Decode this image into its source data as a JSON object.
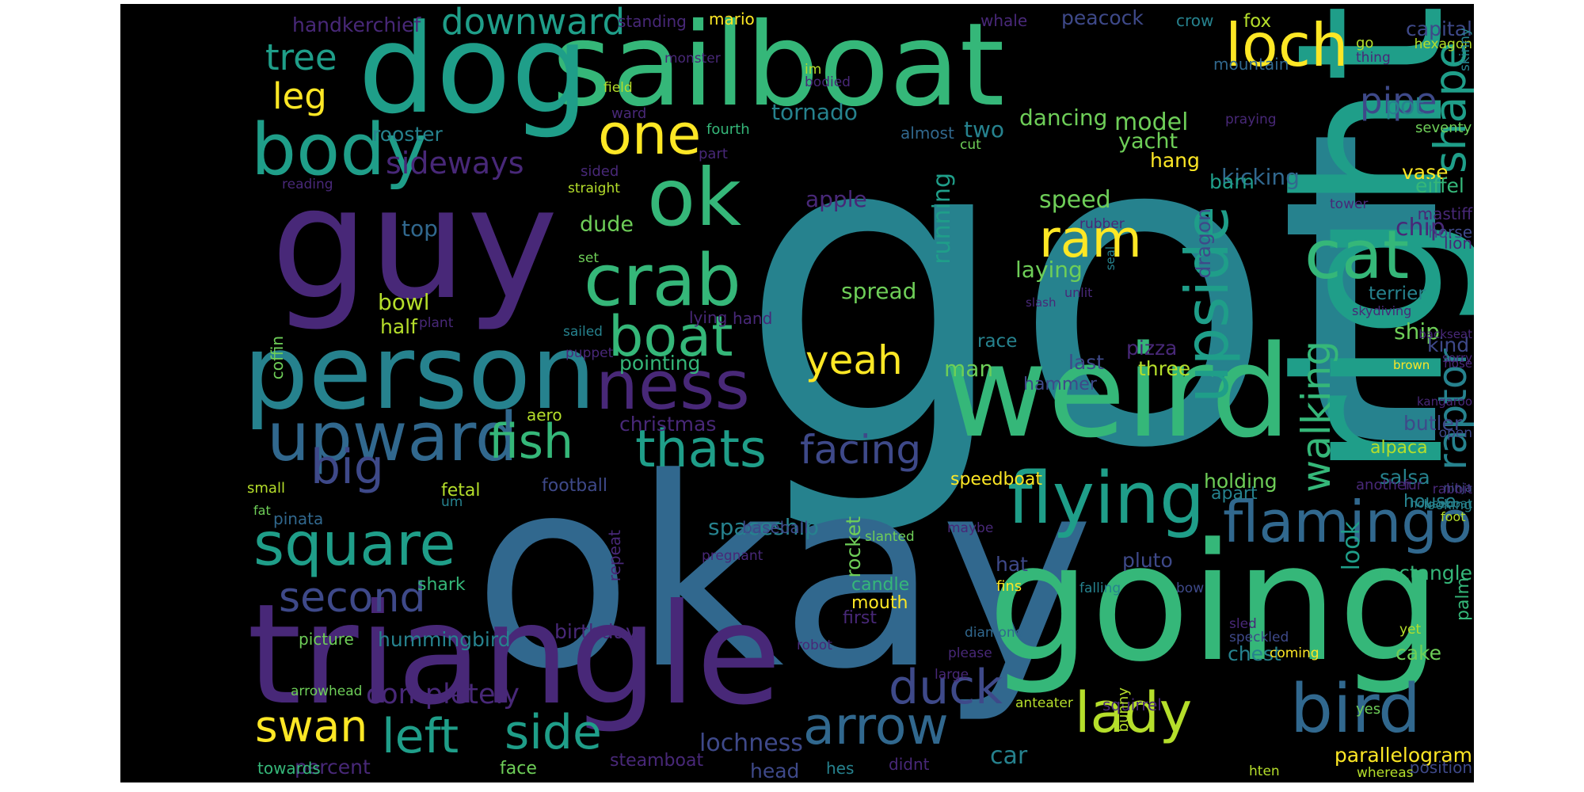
{
  "palette": {
    "background": "#000000",
    "yellow": "#fde725",
    "lime": "#b5de2b",
    "green": "#6ece58",
    "mint": "#35b779",
    "aqua": "#1f9e89",
    "teal": "#26828e",
    "steel": "#31688e",
    "indigo": "#3e4989",
    "violet": "#482878",
    "deep": "#440154"
  },
  "words": [
    {
      "text": "got",
      "color": "teal"
    },
    {
      "text": "okay",
      "color": "steel"
    },
    {
      "text": "sailboat",
      "color": "mint"
    },
    {
      "text": "dog",
      "color": "aqua"
    },
    {
      "text": "guy",
      "color": "violet"
    },
    {
      "text": "right",
      "color": "aqua"
    },
    {
      "text": "going",
      "color": "mint"
    },
    {
      "text": "triangle",
      "color": "violet"
    },
    {
      "text": "weird",
      "color": "mint"
    },
    {
      "text": "person",
      "color": "teal"
    },
    {
      "text": "loch",
      "color": "yellow"
    },
    {
      "text": "ok",
      "color": "mint"
    },
    {
      "text": "body",
      "color": "aqua"
    },
    {
      "text": "crab",
      "color": "mint"
    },
    {
      "text": "ness",
      "color": "violet"
    },
    {
      "text": "upward",
      "color": "steel"
    },
    {
      "text": "flying",
      "color": "aqua"
    },
    {
      "text": "flamingo",
      "color": "steel"
    },
    {
      "text": "bird",
      "color": "steel"
    },
    {
      "text": "cat",
      "color": "mint"
    },
    {
      "text": "square",
      "color": "aqua"
    },
    {
      "text": "one",
      "color": "yellow"
    },
    {
      "text": "boat",
      "color": "mint"
    },
    {
      "text": "thats",
      "color": "aqua"
    },
    {
      "text": "fish",
      "color": "mint"
    },
    {
      "text": "big",
      "color": "indigo"
    },
    {
      "text": "ram",
      "color": "yellow"
    },
    {
      "text": "yeah",
      "color": "yellow"
    },
    {
      "text": "upside",
      "color": "aqua"
    },
    {
      "text": "arrow",
      "color": "steel"
    },
    {
      "text": "lady",
      "color": "lime"
    },
    {
      "text": "swan",
      "color": "yellow"
    },
    {
      "text": "left",
      "color": "aqua"
    },
    {
      "text": "side",
      "color": "aqua"
    },
    {
      "text": "duck",
      "color": "indigo"
    },
    {
      "text": "second",
      "color": "indigo"
    },
    {
      "text": "facing",
      "color": "indigo"
    },
    {
      "text": "walking",
      "color": "mint"
    },
    {
      "text": "raptor",
      "color": "teal"
    },
    {
      "text": "shape",
      "color": "aqua"
    },
    {
      "text": "pipe",
      "color": "indigo"
    },
    {
      "text": "downward",
      "color": "aqua"
    },
    {
      "text": "tree",
      "color": "aqua"
    },
    {
      "text": "leg",
      "color": "yellow"
    },
    {
      "text": "sideways",
      "color": "violet"
    },
    {
      "text": "rooster",
      "color": "teal"
    },
    {
      "text": "tornado",
      "color": "teal"
    },
    {
      "text": "running",
      "color": "aqua"
    },
    {
      "text": "dancing",
      "color": "green"
    },
    {
      "text": "model",
      "color": "green"
    },
    {
      "text": "two",
      "color": "teal"
    },
    {
      "text": "yacht",
      "color": "green"
    },
    {
      "text": "hang",
      "color": "yellow"
    },
    {
      "text": "pot",
      "color": "teal"
    },
    {
      "text": "vase",
      "color": "yellow"
    },
    {
      "text": "eiffel",
      "color": "mint"
    },
    {
      "text": "kicking",
      "color": "steel"
    },
    {
      "text": "barn",
      "color": "aqua"
    },
    {
      "text": "chip",
      "color": "violet"
    },
    {
      "text": "speed",
      "color": "green"
    },
    {
      "text": "laying",
      "color": "green"
    },
    {
      "text": "dragon",
      "color": "indigo"
    },
    {
      "text": "terrier",
      "color": "teal"
    },
    {
      "text": "apple",
      "color": "violet"
    },
    {
      "text": "dude",
      "color": "green"
    },
    {
      "text": "top",
      "color": "steel"
    },
    {
      "text": "bowl",
      "color": "lime"
    },
    {
      "text": "half",
      "color": "lime"
    },
    {
      "text": "spread",
      "color": "green"
    },
    {
      "text": "race",
      "color": "teal"
    },
    {
      "text": "man",
      "color": "green"
    },
    {
      "text": "pizza",
      "color": "violet"
    },
    {
      "text": "last",
      "color": "indigo"
    },
    {
      "text": "three",
      "color": "lime"
    },
    {
      "text": "ship",
      "color": "green"
    },
    {
      "text": "kind",
      "color": "indigo"
    },
    {
      "text": "pointing",
      "color": "mint"
    },
    {
      "text": "christmas",
      "color": "violet"
    },
    {
      "text": "aero",
      "color": "lime"
    },
    {
      "text": "hammer",
      "color": "indigo"
    },
    {
      "text": "butler",
      "color": "indigo"
    },
    {
      "text": "alpaca",
      "color": "lime"
    },
    {
      "text": "salsa",
      "color": "teal"
    },
    {
      "text": "holding",
      "color": "green"
    },
    {
      "text": "apart",
      "color": "teal"
    },
    {
      "text": "speedboat",
      "color": "yellow"
    },
    {
      "text": "house",
      "color": "teal"
    },
    {
      "text": "football",
      "color": "indigo"
    },
    {
      "text": "fetal",
      "color": "lime"
    },
    {
      "text": "um",
      "color": "teal"
    },
    {
      "text": "small",
      "color": "lime"
    },
    {
      "text": "pinata",
      "color": "steel"
    },
    {
      "text": "spaceship",
      "color": "teal"
    },
    {
      "text": "rocket",
      "color": "green"
    },
    {
      "text": "hat",
      "color": "indigo"
    },
    {
      "text": "pluto",
      "color": "indigo"
    },
    {
      "text": "rectangle",
      "color": "mint"
    },
    {
      "text": "shark",
      "color": "mint"
    },
    {
      "text": "candle",
      "color": "mint"
    },
    {
      "text": "mouth",
      "color": "yellow"
    },
    {
      "text": "first",
      "color": "violet"
    },
    {
      "text": "birthday",
      "color": "violet"
    },
    {
      "text": "hummingbird",
      "color": "teal"
    },
    {
      "text": "picture",
      "color": "green"
    },
    {
      "text": "completely",
      "color": "violet"
    },
    {
      "text": "look",
      "color": "aqua"
    },
    {
      "text": "chest",
      "color": "teal"
    },
    {
      "text": "cake",
      "color": "green"
    },
    {
      "text": "palm",
      "color": "mint"
    },
    {
      "text": "lochness",
      "color": "indigo"
    },
    {
      "text": "head",
      "color": "indigo"
    },
    {
      "text": "hes",
      "color": "teal"
    },
    {
      "text": "didnt",
      "color": "violet"
    },
    {
      "text": "car",
      "color": "teal"
    },
    {
      "text": "parallelogram",
      "color": "yellow"
    },
    {
      "text": "position",
      "color": "indigo"
    },
    {
      "text": "percent",
      "color": "violet"
    },
    {
      "text": "towards",
      "color": "mint"
    },
    {
      "text": "face",
      "color": "green"
    },
    {
      "text": "steamboat",
      "color": "violet"
    },
    {
      "text": "squirrel",
      "color": "violet"
    },
    {
      "text": "yes",
      "color": "green"
    },
    {
      "text": "whereas",
      "color": "lime"
    },
    {
      "text": "hten",
      "color": "lime"
    },
    {
      "text": "handkerchief",
      "color": "violet"
    },
    {
      "text": "standing",
      "color": "violet"
    },
    {
      "text": "mario",
      "color": "yellow"
    },
    {
      "text": "whale",
      "color": "violet"
    },
    {
      "text": "peacock",
      "color": "indigo"
    },
    {
      "text": "crow",
      "color": "teal"
    },
    {
      "text": "fox",
      "color": "lime"
    },
    {
      "text": "capital",
      "color": "indigo"
    },
    {
      "text": "monster",
      "color": "violet"
    },
    {
      "text": "field",
      "color": "lime"
    },
    {
      "text": "im",
      "color": "lime"
    },
    {
      "text": "bodied",
      "color": "violet"
    },
    {
      "text": "ward",
      "color": "violet"
    },
    {
      "text": "fourth",
      "color": "mint"
    },
    {
      "text": "part",
      "color": "violet"
    },
    {
      "text": "sided",
      "color": "violet"
    },
    {
      "text": "reading",
      "color": "violet"
    },
    {
      "text": "straight",
      "color": "lime"
    },
    {
      "text": "almost",
      "color": "steel"
    },
    {
      "text": "cut",
      "color": "green"
    },
    {
      "text": "go",
      "color": "lime"
    },
    {
      "text": "thing",
      "color": "violet"
    },
    {
      "text": "hexagon",
      "color": "lime"
    },
    {
      "text": "skinny",
      "color": "teal"
    },
    {
      "text": "praying",
      "color": "violet"
    },
    {
      "text": "seventy",
      "color": "green"
    },
    {
      "text": "mountain",
      "color": "steel"
    },
    {
      "text": "tower",
      "color": "violet"
    },
    {
      "text": "rubber",
      "color": "violet"
    },
    {
      "text": "mastiff",
      "color": "violet"
    },
    {
      "text": "horse",
      "color": "indigo"
    },
    {
      "text": "lion",
      "color": "violet"
    },
    {
      "text": "seal",
      "color": "teal"
    },
    {
      "text": "slash",
      "color": "violet"
    },
    {
      "text": "unlit",
      "color": "violet"
    },
    {
      "text": "skydiving",
      "color": "violet"
    },
    {
      "text": "backseat",
      "color": "violet"
    },
    {
      "text": "sorry",
      "color": "violet"
    },
    {
      "text": "nose",
      "color": "violet"
    },
    {
      "text": "brown",
      "color": "yellow"
    },
    {
      "text": "kangaroo",
      "color": "violet"
    },
    {
      "text": "open",
      "color": "indigo"
    },
    {
      "text": "rabbit",
      "color": "violet"
    },
    {
      "text": "fur",
      "color": "violet"
    },
    {
      "text": "looking",
      "color": "teal"
    },
    {
      "text": "ninja",
      "color": "indigo"
    },
    {
      "text": "houseboat",
      "color": "teal"
    },
    {
      "text": "another",
      "color": "violet"
    },
    {
      "text": "foot",
      "color": "lime"
    },
    {
      "text": "coffin",
      "color": "green"
    },
    {
      "text": "plant",
      "color": "violet"
    },
    {
      "text": "lying",
      "color": "violet"
    },
    {
      "text": "hand",
      "color": "violet"
    },
    {
      "text": "sailed",
      "color": "teal"
    },
    {
      "text": "puppet",
      "color": "violet"
    },
    {
      "text": "set",
      "color": "green"
    },
    {
      "text": "baseball",
      "color": "indigo"
    },
    {
      "text": "slanted",
      "color": "green"
    },
    {
      "text": "maybe",
      "color": "violet"
    },
    {
      "text": "pregnant",
      "color": "violet"
    },
    {
      "text": "fat",
      "color": "green"
    },
    {
      "text": "fins",
      "color": "yellow"
    },
    {
      "text": "repeat",
      "color": "violet"
    },
    {
      "text": "diamond",
      "color": "steel"
    },
    {
      "text": "robot",
      "color": "violet"
    },
    {
      "text": "please",
      "color": "violet"
    },
    {
      "text": "large",
      "color": "violet"
    },
    {
      "text": "anteater",
      "color": "lime"
    },
    {
      "text": "arrowhead",
      "color": "green"
    },
    {
      "text": "bunny",
      "color": "lime"
    },
    {
      "text": "falling",
      "color": "teal"
    },
    {
      "text": "bow",
      "color": "indigo"
    },
    {
      "text": "sled",
      "color": "violet"
    },
    {
      "text": "speckled",
      "color": "indigo"
    },
    {
      "text": "coming",
      "color": "yellow"
    },
    {
      "text": "yet",
      "color": "lime"
    }
  ]
}
